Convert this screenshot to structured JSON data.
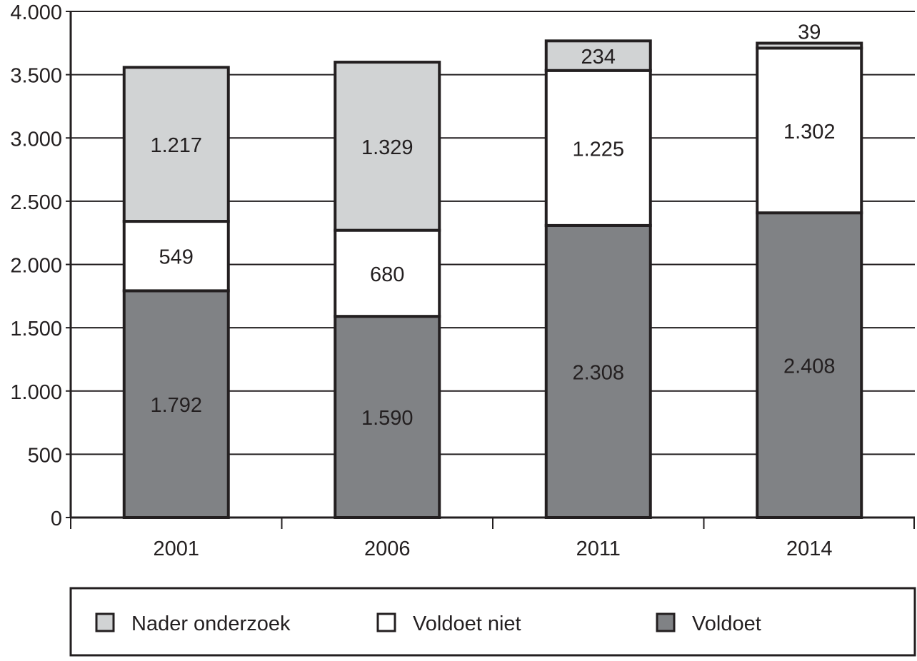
{
  "chart_data": {
    "type": "bar",
    "stacked": true,
    "categories": [
      "2001",
      "2006",
      "2011",
      "2014"
    ],
    "series": [
      {
        "name": "Voldoet",
        "values": [
          1792,
          1590,
          2308,
          2408
        ],
        "labels": [
          "1.792",
          "1.590",
          "2.308",
          "2.408"
        ],
        "color": "#808285"
      },
      {
        "name": "Voldoet niet",
        "values": [
          549,
          680,
          1225,
          1302
        ],
        "labels": [
          "549",
          "680",
          "1.225",
          "1.302"
        ],
        "color": "#ffffff"
      },
      {
        "name": "Nader onderzoek",
        "values": [
          1217,
          1329,
          234,
          39
        ],
        "labels": [
          "1.217",
          "1.329",
          "234",
          "39"
        ],
        "color": "#d1d3d4"
      }
    ],
    "ylim": [
      0,
      4000
    ],
    "yticks": [
      0,
      500,
      1000,
      1500,
      2000,
      2500,
      3000,
      3500,
      4000
    ],
    "ytick_labels": [
      "0",
      "500",
      "1.000",
      "1.500",
      "2.000",
      "2.500",
      "3.000",
      "3.500",
      "4.000"
    ],
    "grid": true,
    "legend": {
      "position": "bottom",
      "order": [
        "Nader onderzoek",
        "Voldoet niet",
        "Voldoet"
      ]
    },
    "title": "",
    "xlabel": "",
    "ylabel": ""
  }
}
